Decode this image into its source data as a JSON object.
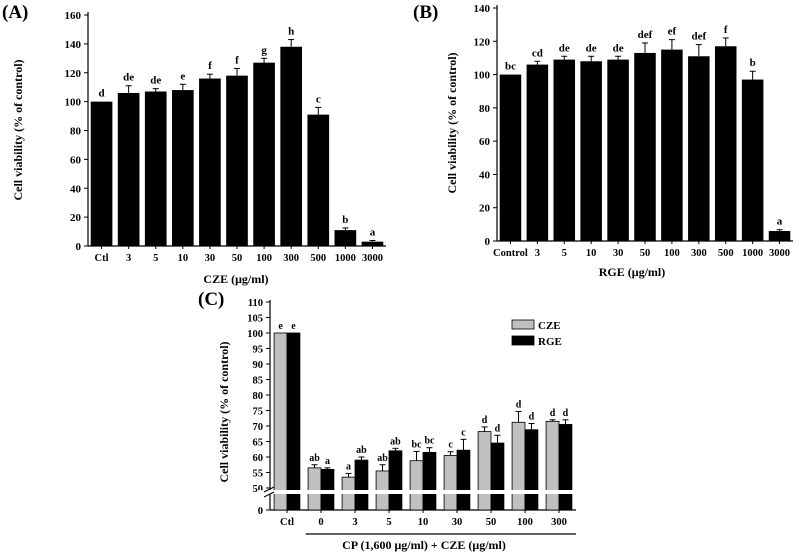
{
  "chart_data": [
    {
      "panel": "(A)",
      "type": "bar",
      "title": "",
      "xlabel": "CZE (μg/ml)",
      "ylabel": "Cell viability (% of control)",
      "ylim": [
        0,
        160
      ],
      "yticks": [
        "0",
        "20",
        "40",
        "60",
        "80",
        "100",
        "120",
        "140",
        "160"
      ],
      "categories": [
        "Ctl",
        "3",
        "5",
        "10",
        "30",
        "50",
        "100",
        "300",
        "500",
        "1000",
        "3000"
      ],
      "values": [
        100,
        106,
        107,
        108,
        116,
        118,
        127,
        138,
        91,
        11,
        3
      ],
      "errors": [
        0,
        5,
        2,
        4,
        3,
        5,
        3,
        5,
        5,
        1.5,
        0.8
      ],
      "letters": [
        "d",
        "de",
        "de",
        "e",
        "f",
        "f",
        "g",
        "h",
        "c",
        "b",
        "a"
      ],
      "bar_color": "#000000"
    },
    {
      "panel": "(B)",
      "type": "bar",
      "title": "",
      "xlabel": "RGE (μg/ml)",
      "ylabel": "Cell viability (% of control)",
      "ylim": [
        0,
        140
      ],
      "yticks": [
        "0",
        "20",
        "40",
        "60",
        "80",
        "100",
        "120",
        "140"
      ],
      "categories": [
        "Control",
        "3",
        "5",
        "10",
        "30",
        "50",
        "100",
        "300",
        "500",
        "1000",
        "3000"
      ],
      "values": [
        100,
        106,
        109,
        108,
        109,
        113,
        115,
        111,
        117,
        97,
        6
      ],
      "errors": [
        0,
        2,
        2,
        3,
        2,
        6,
        6,
        7,
        5,
        5,
        0.8
      ],
      "letters": [
        "bc",
        "cd",
        "de",
        "de",
        "de",
        "def",
        "ef",
        "def",
        "f",
        "b",
        "a"
      ],
      "bar_color": "#000000"
    },
    {
      "panel": "(C)",
      "type": "bar",
      "title": "",
      "xlabel": "CP (1,600 μg/ml) + CZE (μg/ml)",
      "ylabel": "Cell viability (% of control)",
      "ylim": [
        50,
        110
      ],
      "axis_break": true,
      "yticks": [
        "50",
        "55",
        "60",
        "65",
        "70",
        "75",
        "80",
        "85",
        "90",
        "95",
        "100",
        "105",
        "110"
      ],
      "zero_tick": "0",
      "categories": [
        "Ctl",
        "0",
        "3",
        "5",
        "10",
        "30",
        "50",
        "100",
        "300"
      ],
      "series": [
        {
          "name": "CZE",
          "color": "#c0c0c0",
          "values": [
            100,
            56.5,
            53.5,
            55.5,
            58.8,
            60.5,
            68.2,
            71.2,
            71.5
          ],
          "errors": [
            0,
            1.0,
            1.2,
            2.0,
            3.0,
            1.2,
            1.5,
            3.5,
            0.5
          ],
          "letters": [
            "e",
            "ab",
            "a",
            "ab",
            "bc",
            "c",
            "d",
            "d",
            "d"
          ]
        },
        {
          "name": "RGE",
          "color": "#000000",
          "values": [
            100,
            56.0,
            59.0,
            62.0,
            61.5,
            62.2,
            64.5,
            68.8,
            70.5
          ],
          "errors": [
            0,
            0.5,
            1.0,
            0.8,
            1.5,
            3.5,
            2.5,
            2.0,
            1.5
          ],
          "letters": [
            "e",
            "a",
            "ab",
            "ab",
            "bc",
            "c",
            "d",
            "d",
            "d"
          ]
        }
      ]
    }
  ]
}
